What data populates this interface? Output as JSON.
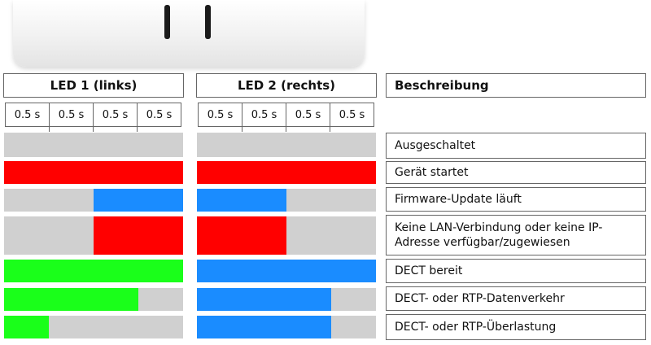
{
  "headers": {
    "led1": "LED 1 (links)",
    "led2": "LED 2 (rechts)",
    "description": "Beschreibung"
  },
  "timing_labels": [
    "0.5 s",
    "0.5 s",
    "0.5 s",
    "0.5 s"
  ],
  "colors": {
    "off": "#d0d0d0",
    "red": "#ff0000",
    "blue": "#1a8cff",
    "green": "#1aff1a"
  },
  "rows": [
    {
      "description": "Ausgeschaltet",
      "led1": {
        "color": "off",
        "on_fraction": 0,
        "position": "none"
      },
      "led2": {
        "color": "off",
        "on_fraction": 0,
        "position": "none"
      }
    },
    {
      "description": "Gerät startet",
      "led1": {
        "color": "red",
        "on_fraction": 1,
        "position": "full"
      },
      "led2": {
        "color": "red",
        "on_fraction": 1,
        "position": "full"
      }
    },
    {
      "description": "Firmware-Update läuft",
      "led1": {
        "color": "blue",
        "on_fraction": 0.5,
        "position": "end"
      },
      "led2": {
        "color": "blue",
        "on_fraction": 0.5,
        "position": "start"
      }
    },
    {
      "description": "Keine LAN-Verbindung oder keine IP-Adresse verfügbar/zugewiesen",
      "led1": {
        "color": "red",
        "on_fraction": 0.5,
        "position": "end"
      },
      "led2": {
        "color": "red",
        "on_fraction": 0.5,
        "position": "start"
      }
    },
    {
      "description": "DECT bereit",
      "led1": {
        "color": "green",
        "on_fraction": 1,
        "position": "full"
      },
      "led2": {
        "color": "blue",
        "on_fraction": 1,
        "position": "full"
      }
    },
    {
      "description": "DECT- oder RTP-Datenverkehr",
      "led1": {
        "color": "green",
        "on_fraction": 0.75,
        "position": "start"
      },
      "led2": {
        "color": "blue",
        "on_fraction": 0.75,
        "position": "start"
      }
    },
    {
      "description": "DECT- oder RTP-Überlastung",
      "led1": {
        "color": "green",
        "on_fraction": 0.25,
        "position": "start"
      },
      "led2": {
        "color": "blue",
        "on_fraction": 0.75,
        "position": "start"
      }
    }
  ]
}
